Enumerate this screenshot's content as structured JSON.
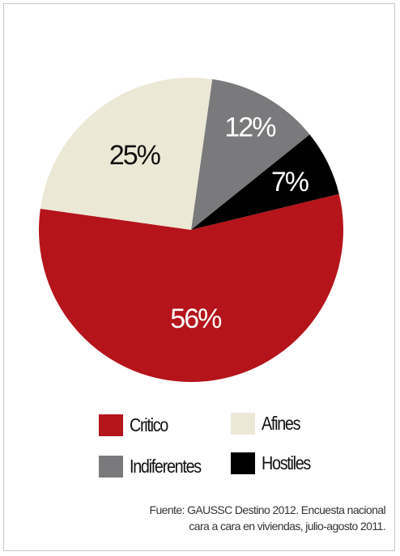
{
  "chart_data": {
    "type": "pie",
    "slices": [
      {
        "name": "Critico",
        "value": 56,
        "label": "56%",
        "color": "#b5141b"
      },
      {
        "name": "Afines",
        "value": 25,
        "label": "25%",
        "color": "#ece8d6"
      },
      {
        "name": "Indiferentes",
        "value": 12,
        "label": "12%",
        "color": "#7a7a7c"
      },
      {
        "name": "Hostiles",
        "value": 7,
        "label": "7%",
        "color": "#000000"
      }
    ],
    "legend": [
      {
        "name": "Critico",
        "color": "#b5141b"
      },
      {
        "name": "Afines",
        "color": "#ece8d6"
      },
      {
        "name": "Indiferentes",
        "color": "#7a7a7c"
      },
      {
        "name": "Hostiles",
        "color": "#000000"
      }
    ]
  },
  "source": {
    "line1": "Fuente:  GAUSSC Destino 2012. Encuesta nacional",
    "line2": "cara a cara en viviendas, julio-agosto 2011."
  }
}
